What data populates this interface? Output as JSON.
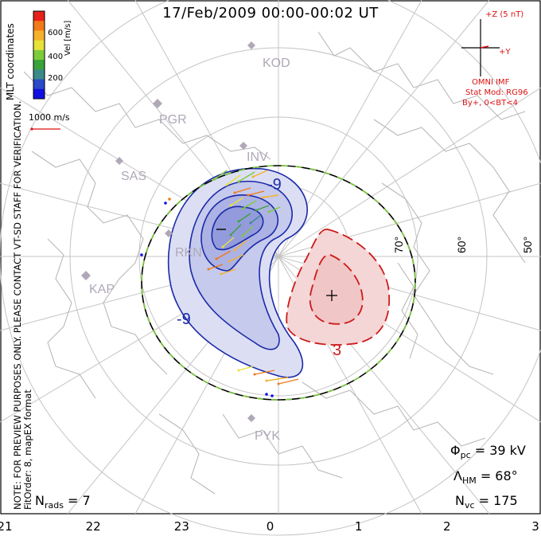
{
  "title": "17/Feb/2009 00:00-00:02 UT",
  "note_line1": "NOTE: FOR PREVIEW PURPOSES ONLY. PLEASE CONTACT VT-SD STAFF FOR VERIFICATION.",
  "note_line2": "FitOrder: 8, mapEX format",
  "colorbar": {
    "title": "Vel [m/s]",
    "labels": [
      "600",
      "400",
      "200"
    ],
    "colors": [
      "#e8201a",
      "#f07a18",
      "#f4b22a",
      "#e6e23a",
      "#7ccc3a",
      "#3aa23a",
      "#3a8a8a",
      "#2a4ac8",
      "#1010e0"
    ]
  },
  "mlt_label": "MLT coordinates",
  "scale_vector_label": "1000 m/s",
  "imf": {
    "z_label": "+Z (5 nT)",
    "y_label": "+Y",
    "source": "OMNI IMF",
    "model": "Stat Mod: RG96",
    "condition": "By+, 0<BT<4"
  },
  "stations": [
    "KOD",
    "PGR",
    "INV",
    "SAS",
    "RKN",
    "KAP",
    "PYK"
  ],
  "lat_labels": [
    "70°",
    "60°",
    "50°"
  ],
  "contour_labels": [
    "-9",
    "-9",
    "3"
  ],
  "stats": {
    "phi_sym": "Φ",
    "phi_sub": "pc",
    "phi_val": "= 39 kV",
    "lam_sym": "Λ",
    "lam_sub": "HM",
    "lam_val": "= 68°",
    "nvc_sym": "N",
    "nvc_sub": "vc",
    "nvc_val": "= 175"
  },
  "nrads": {
    "sym": "N",
    "sub": "rads",
    "val": "= 7"
  },
  "x_axis_ticks": [
    "21",
    "22",
    "23",
    "0",
    "1",
    "2",
    "3"
  ],
  "colors": {
    "negative_fill": "#b8bce8",
    "positive_fill": "#f0c8c8",
    "negative_line": "#1a2aa8",
    "positive_line": "#cc1a1a",
    "grid": "#bbbbbb",
    "coast": "#bbbbbb"
  }
}
